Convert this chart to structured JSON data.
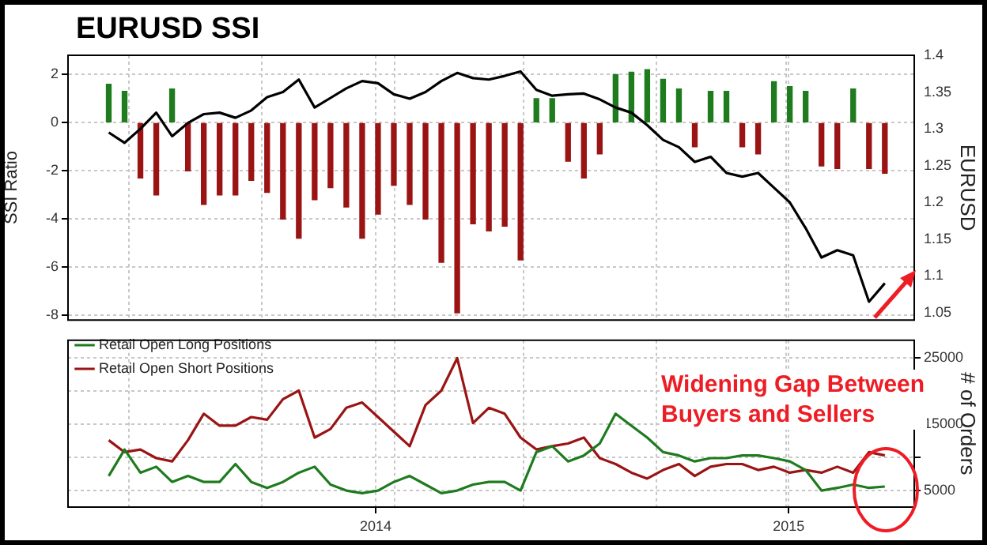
{
  "chart_data": [
    {
      "type": "bar",
      "title": "EURUSD SSI",
      "ylabel": "SSI Ratio",
      "y2label": "EURUSD",
      "x": [
        "2013-05-10",
        "2013-05-24",
        "2013-06-07",
        "2013-06-21",
        "2013-07-05",
        "2013-07-19",
        "2013-08-02",
        "2013-08-16",
        "2013-08-30",
        "2013-09-13",
        "2013-09-27",
        "2013-10-11",
        "2013-10-25",
        "2013-11-08",
        "2013-11-22",
        "2013-12-06",
        "2013-12-20",
        "2014-01-03",
        "2014-01-17",
        "2014-01-31",
        "2014-02-14",
        "2014-02-28",
        "2014-03-14",
        "2014-03-28",
        "2014-04-11",
        "2014-04-25",
        "2014-05-09",
        "2014-05-23",
        "2014-06-06",
        "2014-06-20",
        "2014-07-04",
        "2014-07-18",
        "2014-08-01",
        "2014-08-15",
        "2014-08-29",
        "2014-09-12",
        "2014-09-26",
        "2014-10-10",
        "2014-10-24",
        "2014-11-07",
        "2014-11-21",
        "2014-12-05",
        "2014-12-19",
        "2015-01-02",
        "2015-01-16",
        "2015-01-30",
        "2015-02-13",
        "2015-02-27",
        "2015-03-13",
        "2015-03-27"
      ],
      "series": [
        {
          "type": "bar",
          "colors": [
            "#1e7b1e",
            "#1e7b1e",
            "#9b1414",
            "#9b1414",
            "#1e7b1e",
            "#9b1414",
            "#9b1414",
            "#9b1414",
            "#9b1414",
            "#9b1414",
            "#9b1414",
            "#9b1414",
            "#9b1414",
            "#9b1414",
            "#9b1414",
            "#9b1414",
            "#9b1414",
            "#9b1414",
            "#9b1414",
            "#9b1414",
            "#9b1414",
            "#9b1414",
            "#9b1414",
            "#9b1414",
            "#9b1414",
            "#9b1414",
            "#9b1414",
            "#1e7b1e",
            "#1e7b1e",
            "#9b1414",
            "#9b1414",
            "#9b1414",
            "#1e7b1e",
            "#1e7b1e",
            "#1e7b1e",
            "#1e7b1e",
            "#1e7b1e",
            "#9b1414",
            "#1e7b1e",
            "#1e7b1e",
            "#9b1414",
            "#9b1414",
            "#1e7b1e",
            "#1e7b1e",
            "#1e7b1e",
            "#9b1414",
            "#9b1414",
            "#1e7b1e",
            "#9b1414",
            "#9b1414"
          ],
          "values": [
            1.6,
            1.3,
            -2.3,
            -3.0,
            1.4,
            -2.0,
            -3.4,
            -3.0,
            -3.0,
            -2.4,
            -2.9,
            -4.0,
            -4.8,
            -3.2,
            -2.7,
            -3.5,
            -4.8,
            -3.8,
            -2.6,
            -3.4,
            -4.0,
            -5.8,
            -7.9,
            -4.2,
            -4.5,
            -4.3,
            -5.7,
            1.0,
            1.0,
            -1.6,
            -2.3,
            -1.3,
            2.0,
            2.1,
            2.2,
            1.8,
            1.4,
            -1.0,
            1.3,
            1.3,
            -1.0,
            -1.3,
            1.7,
            1.5,
            1.3,
            -1.8,
            -1.9,
            1.4,
            -1.9,
            -2.1
          ]
        },
        {
          "type": "line",
          "axis": "y2",
          "color": "#000000",
          "values": [
            1.295,
            1.281,
            1.3,
            1.322,
            1.29,
            1.308,
            1.32,
            1.322,
            1.315,
            1.325,
            1.343,
            1.35,
            1.367,
            1.329,
            1.342,
            1.355,
            1.365,
            1.362,
            1.347,
            1.341,
            1.35,
            1.365,
            1.376,
            1.369,
            1.367,
            1.372,
            1.378,
            1.353,
            1.345,
            1.347,
            1.348,
            1.34,
            1.329,
            1.322,
            1.305,
            1.285,
            1.275,
            1.255,
            1.262,
            1.24,
            1.235,
            1.24,
            1.22,
            1.2,
            1.165,
            1.125,
            1.135,
            1.128,
            1.065,
            1.09
          ]
        }
      ],
      "xlim": [
        "2013-04-04",
        "2015-04-22"
      ],
      "xticks": [
        {
          "value": "2013-05-28",
          "label": null
        },
        {
          "value": "2013-09-22",
          "label": null
        },
        {
          "value": "2014-01-01",
          "label": null
        },
        {
          "value": "2014-01-18",
          "label": null
        },
        {
          "value": "2014-05-12",
          "label": null
        },
        {
          "value": "2014-09-06",
          "label": null
        },
        {
          "value": "2014-12-30",
          "label": null
        },
        {
          "value": "2015-01-01",
          "label": null
        }
      ],
      "ylim": [
        -8.2,
        2.8
      ],
      "yticks": [
        -8,
        -6,
        -4,
        -2,
        0,
        2
      ],
      "y2lim": [
        1.04,
        1.4
      ],
      "y2ticks": [
        1.05,
        1.1,
        1.15,
        1.2,
        1.25,
        1.3,
        1.35,
        1.4
      ],
      "grid": true,
      "tick_labels": "y",
      "marker": "none"
    },
    {
      "type": "line",
      "y2label": "# of Orders",
      "x": [
        "2013-05-10",
        "2013-05-24",
        "2013-06-07",
        "2013-06-21",
        "2013-07-05",
        "2013-07-19",
        "2013-08-02",
        "2013-08-16",
        "2013-08-30",
        "2013-09-13",
        "2013-09-27",
        "2013-10-11",
        "2013-10-25",
        "2013-11-08",
        "2013-11-22",
        "2013-12-06",
        "2013-12-20",
        "2014-01-03",
        "2014-01-17",
        "2014-01-31",
        "2014-02-14",
        "2014-02-28",
        "2014-03-14",
        "2014-03-28",
        "2014-04-11",
        "2014-04-25",
        "2014-05-09",
        "2014-05-23",
        "2014-06-06",
        "2014-06-20",
        "2014-07-04",
        "2014-07-18",
        "2014-08-01",
        "2014-08-15",
        "2014-08-29",
        "2014-09-12",
        "2014-09-26",
        "2014-10-10",
        "2014-10-24",
        "2014-11-07",
        "2014-11-21",
        "2014-12-05",
        "2014-12-19",
        "2015-01-02",
        "2015-01-16",
        "2015-01-30",
        "2015-02-13",
        "2015-02-27",
        "2015-03-13",
        "2015-03-27"
      ],
      "series": [
        {
          "name": "Retail Open Long Positions",
          "axis": "y2",
          "color": "#1e7b1e",
          "values": [
            7200,
            11200,
            7700,
            8600,
            6300,
            7200,
            6300,
            6300,
            9000,
            6300,
            5400,
            6300,
            7700,
            8600,
            5900,
            5000,
            4600,
            5000,
            6300,
            7200,
            5900,
            4600,
            5000,
            5900,
            6300,
            6300,
            5000,
            10800,
            11700,
            9400,
            10300,
            12100,
            16600,
            14800,
            13000,
            10800,
            10300,
            9400,
            9900,
            9900,
            10300,
            10300,
            9900,
            9400,
            8100,
            5000,
            5400,
            5900,
            5400,
            5600
          ]
        },
        {
          "name": "Retail Open Short Positions",
          "axis": "y2",
          "color": "#9b1414",
          "values": [
            12600,
            10800,
            11200,
            9900,
            9400,
            12600,
            16600,
            14800,
            14800,
            16100,
            15700,
            18800,
            20100,
            13000,
            14300,
            17500,
            18300,
            16100,
            13900,
            11700,
            17900,
            20100,
            25000,
            15200,
            17500,
            16600,
            13000,
            11200,
            11700,
            12100,
            13000,
            9900,
            9000,
            7700,
            6800,
            8100,
            9000,
            7200,
            8600,
            9000,
            9000,
            8100,
            8600,
            7700,
            8100,
            7700,
            8600,
            7700,
            10800,
            10300
          ]
        }
      ],
      "xlim": [
        "2013-04-04",
        "2015-04-22"
      ],
      "xticks": [
        {
          "value": "2013-05-28",
          "label": null
        },
        {
          "value": "2013-09-22",
          "label": null
        },
        {
          "value": "2014-01-01",
          "label": "2014"
        },
        {
          "value": "2014-01-18",
          "label": null
        },
        {
          "value": "2014-05-12",
          "label": null
        },
        {
          "value": "2014-09-06",
          "label": null
        },
        {
          "value": "2014-12-30",
          "label": null
        },
        {
          "value": "2015-01-01",
          "label": "2015"
        }
      ],
      "y2lim": [
        2500,
        27700
      ],
      "y2ticks": [
        5000,
        {
          "value": 10000,
          "label": null
        },
        15000,
        {
          "value": 20000,
          "label": null
        },
        25000
      ],
      "grid": true,
      "legend": "top left",
      "marker": "none",
      "annotations": [
        "Widening Gap Between Buyers and Sellers"
      ]
    }
  ]
}
